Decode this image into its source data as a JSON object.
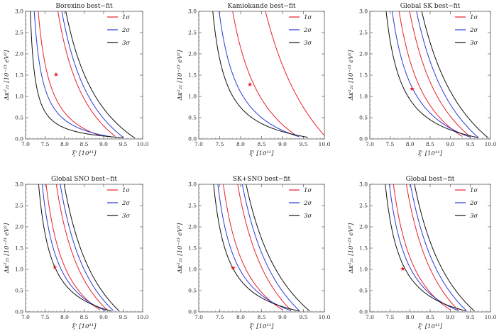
{
  "chart_data": [
    {
      "type": "line",
      "title": "Borexino best−fit",
      "xlabel": "ξ' [10¹¹]",
      "ylabel": "Δκ²₂₁ [10⁻²³ eV²]",
      "xlim": [
        7.0,
        10.0
      ],
      "ylim": [
        0.0,
        3.0
      ],
      "xticks": [
        "7.0",
        "7.5",
        "8.0",
        "8.5",
        "9.0",
        "9.5",
        "10.0"
      ],
      "yticks": [
        "0.0",
        "0.5",
        "1.0",
        "1.5",
        "2.0",
        "2.5",
        "3.0"
      ],
      "legend": [
        "1σ",
        "2σ",
        "3σ"
      ],
      "best_fit": {
        "x": 7.78,
        "y": 1.52
      },
      "series": [
        {
          "name": "1σ",
          "color": "#e8202a",
          "branches": [
            {
              "x0": 7.32,
              "xt": 8.9,
              "yt": 0.08
            },
            {
              "x0": 7.82,
              "xt": 9.3,
              "yt": 0.06
            }
          ]
        },
        {
          "name": "2σ",
          "color": "#2a3ad6",
          "branches": [
            {
              "x0": 7.22,
              "xt": 9.2,
              "yt": 0.05
            },
            {
              "x0": 7.92,
              "xt": 9.5,
              "yt": 0.04
            }
          ]
        },
        {
          "name": "3σ",
          "color": "#111111",
          "branches": [
            {
              "x0": 7.12,
              "xt": 9.5,
              "yt": 0.03
            },
            {
              "x0": 8.02,
              "xt": 9.8,
              "yt": 0.02
            }
          ]
        }
      ]
    },
    {
      "type": "line",
      "title": "Kamiokande best−fit",
      "xlabel": "ξ' [10¹¹]",
      "ylabel": "Δκ²₂₁ [10⁻²³ eV²]",
      "xlim": [
        7.0,
        10.0
      ],
      "ylim": [
        0.0,
        3.0
      ],
      "xticks": [
        "7.0",
        "7.5",
        "8.0",
        "8.5",
        "9.0",
        "9.5",
        "10.0"
      ],
      "yticks": [
        "0.0",
        "0.5",
        "1.0",
        "1.5",
        "2.0",
        "2.5",
        "3.0"
      ],
      "legend": [
        "1σ",
        "2σ",
        "3σ"
      ],
      "best_fit": {
        "x": 8.22,
        "y": 1.28
      },
      "series": [
        {
          "name": "1σ",
          "color": "#e8202a",
          "branches": [
            {
              "x0": 7.8,
              "xt": 9.3,
              "yt": 0.1
            },
            {
              "x0": 8.58,
              "xt": 10.0,
              "yt": 0.08
            }
          ]
        },
        {
          "name": "2σ",
          "color": "#2a3ad6",
          "branches": [
            {
              "x0": 7.48,
              "xt": 9.4,
              "yt": 0.05
            }
          ]
        },
        {
          "name": "3σ",
          "color": "#111111",
          "branches": [
            {
              "x0": 7.33,
              "xt": 9.6,
              "yt": 0.04
            }
          ]
        }
      ]
    },
    {
      "type": "line",
      "title": "Global SK best−fit",
      "xlabel": "ξ' [10¹¹]",
      "ylabel": "Δκ²₂₁ [10⁻²³ eV²]",
      "xlim": [
        7.0,
        10.0
      ],
      "ylim": [
        0.0,
        3.0
      ],
      "xticks": [
        "7.0",
        "7.5",
        "8.0",
        "8.5",
        "9.0",
        "9.5",
        "10.0"
      ],
      "yticks": [
        "0.0",
        "0.5",
        "1.0",
        "1.5",
        "2.0",
        "2.5",
        "3.0"
      ],
      "legend": [
        "1σ",
        "2σ",
        "3σ"
      ],
      "best_fit": {
        "x": 8.05,
        "y": 1.18
      },
      "series": [
        {
          "name": "1σ",
          "color": "#e8202a",
          "branches": [
            {
              "x0": 7.72,
              "xt": 9.3,
              "yt": 0.06
            },
            {
              "x0": 7.98,
              "xt": 9.5,
              "yt": 0.05
            }
          ]
        },
        {
          "name": "2σ",
          "color": "#2a3ad6",
          "branches": [
            {
              "x0": 7.55,
              "xt": 9.5,
              "yt": 0.04
            },
            {
              "x0": 8.15,
              "xt": 9.7,
              "yt": 0.03
            }
          ]
        },
        {
          "name": "3σ",
          "color": "#111111",
          "branches": [
            {
              "x0": 7.4,
              "xt": 9.7,
              "yt": 0.03
            },
            {
              "x0": 8.28,
              "xt": 9.95,
              "yt": 0.02
            }
          ]
        }
      ]
    },
    {
      "type": "line",
      "title": "Global SNO best−fit",
      "xlabel": "ξ' [10¹¹]",
      "ylabel": "Δκ²₂₁ [10⁻²³ eV²]",
      "xlim": [
        7.0,
        10.0
      ],
      "ylim": [
        0.0,
        3.0
      ],
      "xticks": [
        "7.0",
        "7.5",
        "8.0",
        "8.5",
        "9.0",
        "9.5",
        "10.0"
      ],
      "yticks": [
        "0.0",
        "0.5",
        "1.0",
        "1.5",
        "2.0",
        "2.5",
        "3.0"
      ],
      "legend": [
        "1σ",
        "2σ",
        "3σ"
      ],
      "best_fit": {
        "x": 7.75,
        "y": 1.05
      },
      "series": [
        {
          "name": "1σ",
          "color": "#e8202a",
          "branches": [
            {
              "x0": 7.52,
              "xt": 8.9,
              "yt": 0.05
            },
            {
              "x0": 7.78,
              "xt": 9.1,
              "yt": 0.04
            }
          ]
        },
        {
          "name": "2σ",
          "color": "#2a3ad6",
          "branches": [
            {
              "x0": 7.42,
              "xt": 9.05,
              "yt": 0.03
            },
            {
              "x0": 7.88,
              "xt": 9.25,
              "yt": 0.03
            }
          ]
        },
        {
          "name": "3σ",
          "color": "#111111",
          "branches": [
            {
              "x0": 7.33,
              "xt": 9.2,
              "yt": 0.02
            },
            {
              "x0": 7.98,
              "xt": 9.4,
              "yt": 0.02
            }
          ]
        }
      ]
    },
    {
      "type": "line",
      "title": "SK+SNO best−fit",
      "xlabel": "ξ' [10¹¹]",
      "ylabel": "Δκ²₂₁ [10⁻²³ eV²]",
      "xlim": [
        7.0,
        10.0
      ],
      "ylim": [
        0.0,
        3.0
      ],
      "xticks": [
        "7.0",
        "7.5",
        "8.0",
        "8.5",
        "9.0",
        "9.5",
        "10.0"
      ],
      "yticks": [
        "0.0",
        "0.5",
        "1.0",
        "1.5",
        "2.0",
        "2.5",
        "3.0"
      ],
      "legend": [
        "1σ",
        "2σ",
        "3σ"
      ],
      "best_fit": {
        "x": 7.82,
        "y": 1.03
      },
      "series": [
        {
          "name": "1σ",
          "color": "#e8202a",
          "branches": [
            {
              "x0": 7.58,
              "xt": 9.0,
              "yt": 0.05
            },
            {
              "x0": 7.92,
              "xt": 9.2,
              "yt": 0.04
            }
          ]
        },
        {
          "name": "2σ",
          "color": "#2a3ad6",
          "branches": [
            {
              "x0": 7.45,
              "xt": 9.2,
              "yt": 0.03
            },
            {
              "x0": 8.03,
              "xt": 9.4,
              "yt": 0.03
            }
          ]
        },
        {
          "name": "3σ",
          "color": "#111111",
          "branches": [
            {
              "x0": 7.35,
              "xt": 9.4,
              "yt": 0.02
            },
            {
              "x0": 8.12,
              "xt": 9.65,
              "yt": 0.02
            }
          ]
        }
      ]
    },
    {
      "type": "line",
      "title": "Global best−fit",
      "xlabel": "ξ' [10¹¹]",
      "ylabel": "Δκ²₂₁ [10⁻²³ eV²]",
      "xlim": [
        7.0,
        10.0
      ],
      "ylim": [
        0.0,
        3.0
      ],
      "xticks": [
        "7.0",
        "7.5",
        "8.0",
        "8.5",
        "9.0",
        "9.5",
        "10.0"
      ],
      "yticks": [
        "0.0",
        "0.5",
        "1.0",
        "1.5",
        "2.0",
        "2.5",
        "3.0"
      ],
      "legend": [
        "1σ",
        "2σ",
        "3σ"
      ],
      "best_fit": {
        "x": 7.82,
        "y": 1.02
      },
      "series": [
        {
          "name": "1σ",
          "color": "#e8202a",
          "branches": [
            {
              "x0": 7.58,
              "xt": 9.0,
              "yt": 0.05
            },
            {
              "x0": 7.9,
              "xt": 9.2,
              "yt": 0.04
            }
          ]
        },
        {
          "name": "2σ",
          "color": "#2a3ad6",
          "branches": [
            {
              "x0": 7.48,
              "xt": 9.2,
              "yt": 0.03
            },
            {
              "x0": 8.0,
              "xt": 9.4,
              "yt": 0.03
            }
          ]
        },
        {
          "name": "3σ",
          "color": "#111111",
          "branches": [
            {
              "x0": 7.38,
              "xt": 9.4,
              "yt": 0.02
            },
            {
              "x0": 8.1,
              "xt": 9.6,
              "yt": 0.02
            }
          ]
        }
      ]
    }
  ]
}
